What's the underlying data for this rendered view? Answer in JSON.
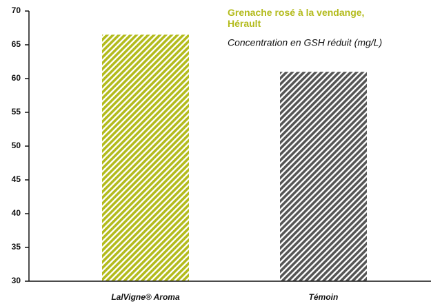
{
  "chart_data": {
    "type": "bar",
    "title": "Grenache rosé à la vendange, Hérault",
    "subtitle": "Concentration en GSH réduit (mg/L)",
    "categories": [
      "LalVigne® Aroma",
      "Témoin"
    ],
    "values": [
      66.5,
      61
    ],
    "colors": [
      "#b3bb1c",
      "#555555"
    ],
    "ylim": [
      30,
      70
    ],
    "yticks": [
      30,
      35,
      40,
      45,
      50,
      55,
      60,
      65,
      70
    ],
    "hatched": true,
    "grid": false
  }
}
